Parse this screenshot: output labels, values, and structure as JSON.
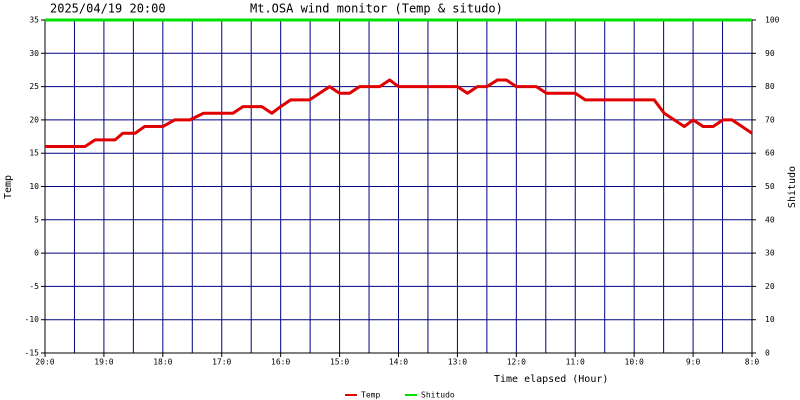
{
  "chart_data": {
    "type": "line",
    "date": "2025/04/19 20:00",
    "title": "Mt.OSA wind monitor (Temp & situdo)",
    "xlabel": "Time elapsed (Hour)",
    "ylabel": "Temp",
    "y2label": "Shitudo",
    "xlim": [
      0,
      12
    ],
    "xticks": [
      {
        "value": 0,
        "label": "20:0"
      },
      {
        "value": 1,
        "label": "19:0"
      },
      {
        "value": 2,
        "label": "18:0"
      },
      {
        "value": 3,
        "label": "17:0"
      },
      {
        "value": 4,
        "label": "16:0"
      },
      {
        "value": 5,
        "label": "15:0"
      },
      {
        "value": 6,
        "label": "14:0"
      },
      {
        "value": 7,
        "label": "13:0"
      },
      {
        "value": 8,
        "label": "12:0"
      },
      {
        "value": 9,
        "label": "11:0"
      },
      {
        "value": 10,
        "label": "10:0"
      },
      {
        "value": 11,
        "label": "9:0"
      },
      {
        "value": 12,
        "label": "8:0"
      }
    ],
    "x_gridlines": [
      0,
      0.5,
      1,
      1.5,
      2,
      2.5,
      3,
      3.5,
      4,
      4.5,
      5,
      5.5,
      6,
      6.5,
      7,
      7.5,
      8,
      8.5,
      9,
      9.5,
      10,
      10.5,
      11,
      11.5,
      12
    ],
    "ylim": [
      -15,
      35
    ],
    "yticks": [
      -15,
      -10,
      -5,
      0,
      5,
      10,
      15,
      20,
      25,
      30,
      35
    ],
    "y2lim": [
      0,
      100
    ],
    "y2ticks": [
      0,
      10,
      20,
      30,
      40,
      50,
      60,
      70,
      80,
      90,
      100
    ],
    "grid": true,
    "grid_color": "#000080",
    "legend": "bottom",
    "series": [
      {
        "name": "Temp",
        "color": "#e00000",
        "x": [
          0,
          0.68,
          0.85,
          1.19,
          1.32,
          1.53,
          1.69,
          2.0,
          2.2,
          2.46,
          2.69,
          3.19,
          3.36,
          3.68,
          3.85,
          4.0,
          4.17,
          4.49,
          4.66,
          4.83,
          5.0,
          5.17,
          5.34,
          5.68,
          5.85,
          6.0,
          7.0,
          7.17,
          7.34,
          7.5,
          7.68,
          7.83,
          8.0,
          8.34,
          8.51,
          9.0,
          9.17,
          10.34,
          10.51,
          10.68,
          10.85,
          11.0,
          11.17,
          11.34,
          11.51,
          11.66,
          11.83,
          12.0
        ],
        "values": [
          16,
          16,
          17,
          17,
          18,
          18,
          19,
          19,
          20,
          20,
          21,
          21,
          22,
          22,
          21,
          22,
          23,
          23,
          24,
          25,
          24,
          24,
          25,
          25,
          26,
          25,
          25,
          24,
          25,
          25,
          26,
          26,
          25,
          25,
          24,
          24,
          23,
          23,
          21,
          20,
          19,
          20,
          19,
          19,
          20,
          20,
          19,
          18
        ]
      },
      {
        "name": "Shitudo",
        "color": "#00e000",
        "axis": "y2",
        "x": [
          0,
          12
        ],
        "values": [
          100,
          100
        ]
      }
    ]
  }
}
